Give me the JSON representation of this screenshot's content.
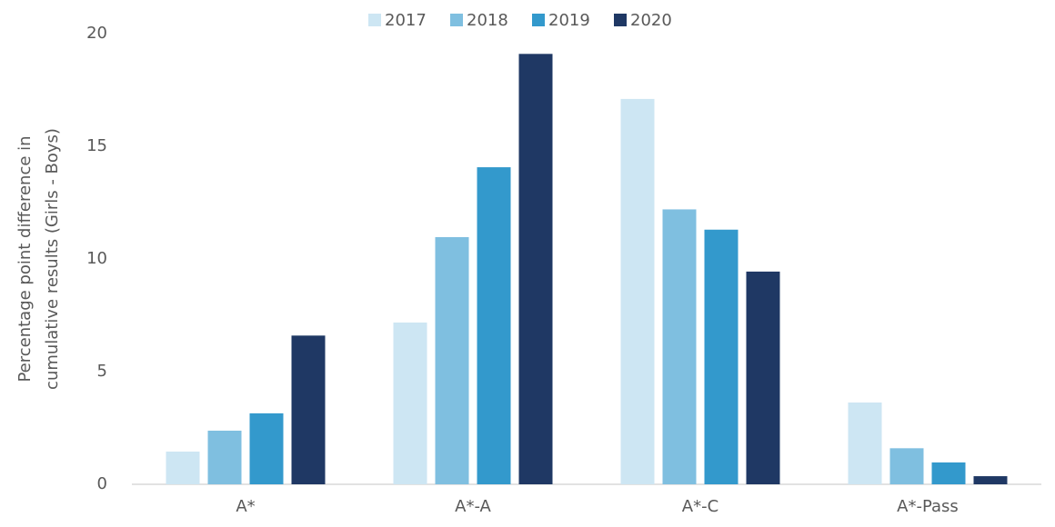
{
  "chart_data": {
    "type": "bar",
    "ylabel": [
      "Percentage point difference in",
      "cumulative results (Girls - Boys)"
    ],
    "categories": [
      "A*",
      "A*-A",
      "A*-C",
      "A*-Pass"
    ],
    "series": [
      {
        "name": "2017",
        "color": "#cde6f3",
        "values": [
          1.45,
          7.18,
          17.1,
          3.63
        ]
      },
      {
        "name": "2018",
        "color": "#7fbfe0",
        "values": [
          2.38,
          10.97,
          12.2,
          1.6
        ]
      },
      {
        "name": "2019",
        "color": "#3399cc",
        "values": [
          3.15,
          14.07,
          11.3,
          0.97
        ]
      },
      {
        "name": "2020",
        "color": "#1f3864",
        "values": [
          6.6,
          19.1,
          9.44,
          0.36
        ]
      }
    ],
    "ylim": [
      0,
      20
    ],
    "yticks": [
      0,
      5,
      10,
      15,
      20
    ],
    "grid": false,
    "legend": "top"
  }
}
